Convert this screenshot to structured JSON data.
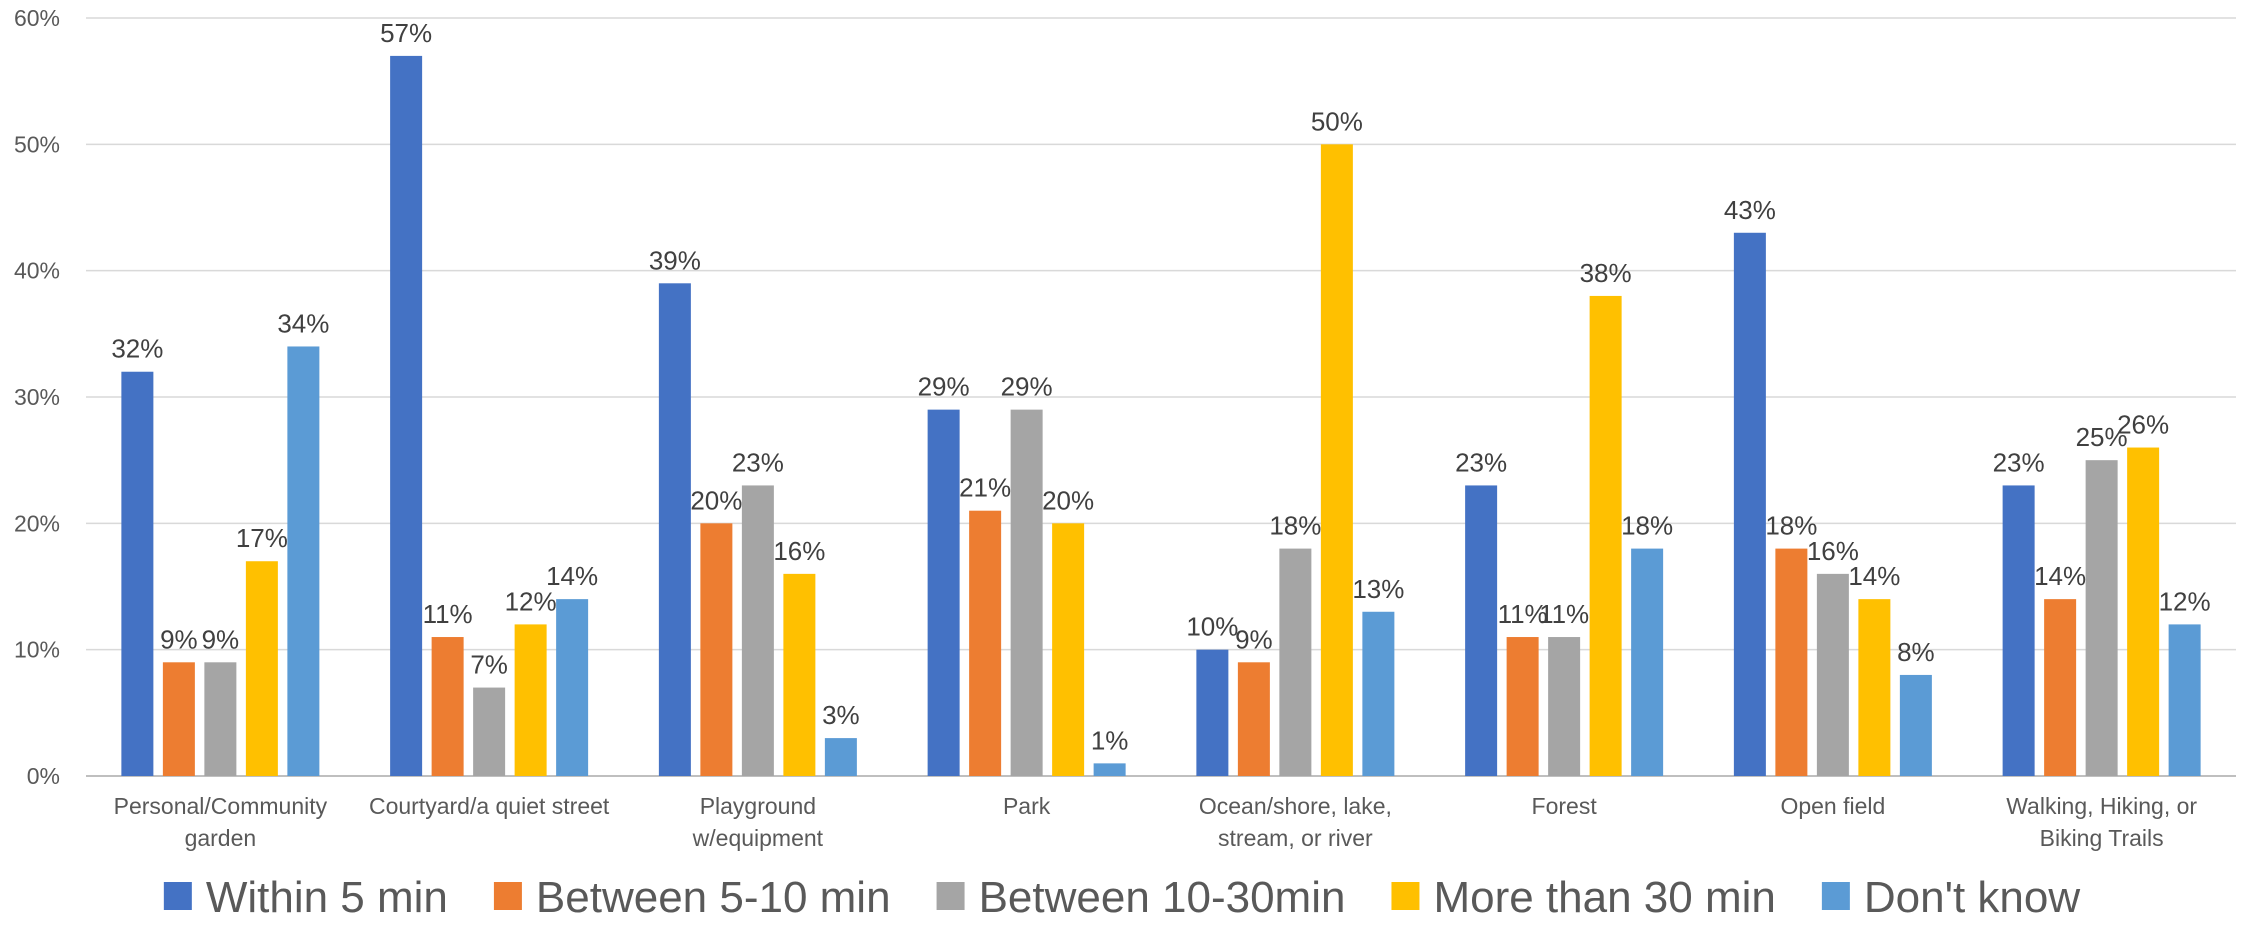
{
  "chart_data": {
    "type": "bar",
    "title": "",
    "xlabel": "",
    "ylabel": "",
    "ylim": [
      0,
      60
    ],
    "y_ticks": [
      "0%",
      "10%",
      "20%",
      "30%",
      "40%",
      "50%",
      "60%"
    ],
    "y_tick_values": [
      0,
      10,
      20,
      30,
      40,
      50,
      60
    ],
    "grid": true,
    "legend_position": "bottom",
    "categories": [
      [
        "Personal/Community",
        "garden"
      ],
      [
        "Courtyard/a quiet street"
      ],
      [
        "Playground",
        "w/equipment"
      ],
      [
        "Park"
      ],
      [
        "Ocean/shore, lake,",
        "stream, or river"
      ],
      [
        "Forest"
      ],
      [
        "Open field"
      ],
      [
        "Walking, Hiking, or",
        "Biking Trails"
      ]
    ],
    "series": [
      {
        "name": "Within 5 min",
        "color": "#4472C4",
        "values": [
          32,
          57,
          39,
          29,
          10,
          23,
          43,
          23
        ],
        "labels": [
          "32%",
          "57%",
          "39%",
          "29%",
          "10%",
          "23%",
          "43%",
          "23%"
        ]
      },
      {
        "name": "Between 5-10 min",
        "color": "#ED7D31",
        "values": [
          9,
          11,
          20,
          21,
          9,
          11,
          18,
          14
        ],
        "labels": [
          "9%",
          "11%",
          "20%",
          "21%",
          "9%",
          "11%",
          "18%",
          "14%"
        ]
      },
      {
        "name": "Between 10-30min",
        "color": "#A5A5A5",
        "values": [
          9,
          7,
          23,
          29,
          18,
          11,
          16,
          25
        ],
        "labels": [
          "9%",
          "7%",
          "23%",
          "29%",
          "18%",
          "11%",
          "16%",
          "25%"
        ]
      },
      {
        "name": "More than 30 min",
        "color": "#FFC000",
        "values": [
          17,
          12,
          16,
          20,
          50,
          38,
          14,
          26
        ],
        "labels": [
          "17%",
          "12%",
          "16%",
          "20%",
          "50%",
          "38%",
          "14%",
          "26%"
        ]
      },
      {
        "name": "Don't know",
        "color": "#5B9BD5",
        "values": [
          34,
          14,
          3,
          1,
          13,
          18,
          8,
          12
        ],
        "labels": [
          "34%",
          "14%",
          "3%",
          "1%",
          "13%",
          "18%",
          "8%",
          "12%"
        ]
      }
    ]
  }
}
